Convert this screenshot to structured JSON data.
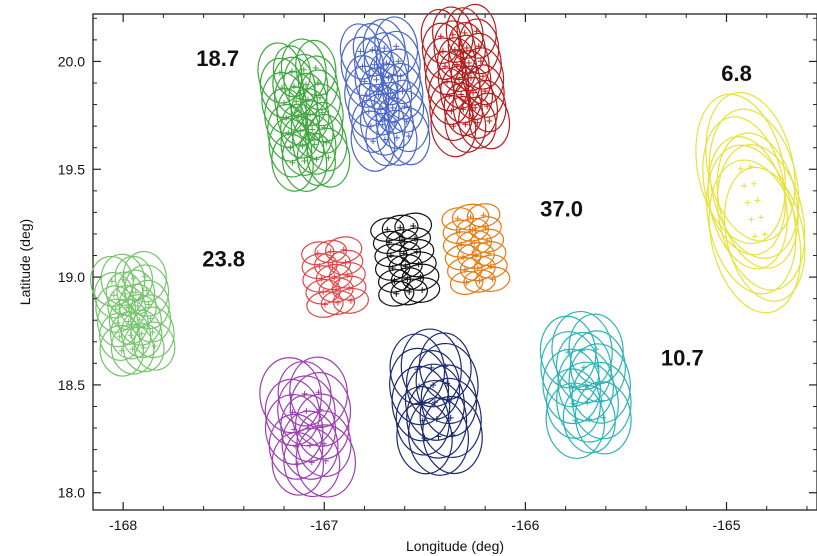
{
  "chart_data": {
    "type": "scatter",
    "title": "",
    "xlabel": "Longitude (deg)",
    "ylabel": "Latitude (deg)",
    "xlim": [
      -168.15,
      -164.55
    ],
    "ylim": [
      17.92,
      20.22
    ],
    "x_ticks": [
      {
        "value": -168,
        "label": "-168"
      },
      {
        "value": -167,
        "label": "-167"
      },
      {
        "value": -166,
        "label": "-166"
      },
      {
        "value": -165,
        "label": "-165"
      }
    ],
    "y_ticks": [
      {
        "value": 18.0,
        "label": "18.0"
      },
      {
        "value": 18.5,
        "label": "18.5"
      },
      {
        "value": 19.0,
        "label": "19.0"
      },
      {
        "value": 19.5,
        "label": "19.5"
      },
      {
        "value": 20.0,
        "label": "20.0"
      }
    ],
    "grid": false,
    "legend": "none",
    "groups": [
      {
        "id": "green",
        "color": "#3fa63f",
        "label": "18.7",
        "center": [
          -167.1,
          19.75
        ],
        "cols": 4,
        "rows": 7,
        "rx": 0.1,
        "ry": 0.13,
        "dx": 0.06,
        "dy": 0.07,
        "rot": -8
      },
      {
        "id": "blue",
        "color": "#4a66c8",
        "label": "",
        "center": [
          -166.7,
          19.85
        ],
        "cols": 4,
        "rows": 7,
        "rx": 0.1,
        "ry": 0.13,
        "dx": 0.06,
        "dy": 0.07,
        "rot": -8
      },
      {
        "id": "darkred",
        "color": "#b31d1d",
        "label": "",
        "center": [
          -166.3,
          19.92
        ],
        "cols": 4,
        "rows": 7,
        "rx": 0.1,
        "ry": 0.13,
        "dx": 0.06,
        "dy": 0.07,
        "rot": -8
      },
      {
        "id": "lightgreen",
        "color": "#77c46d",
        "label": "23.8",
        "center": [
          -167.95,
          18.83
        ],
        "cols": 4,
        "rows": 6,
        "rx": 0.1,
        "ry": 0.11,
        "dx": 0.055,
        "dy": 0.065,
        "rot": -8
      },
      {
        "id": "red",
        "color": "#e04848",
        "label": "",
        "center": [
          -166.95,
          19.0
        ],
        "cols": 3,
        "rows": 5,
        "rx": 0.085,
        "ry": 0.055,
        "dx": 0.065,
        "dy": 0.06,
        "rot": -8
      },
      {
        "id": "black",
        "color": "#111111",
        "label": "",
        "center": [
          -166.6,
          19.08
        ],
        "cols": 3,
        "rows": 6,
        "rx": 0.085,
        "ry": 0.055,
        "dx": 0.065,
        "dy": 0.06,
        "rot": -8
      },
      {
        "id": "orange",
        "color": "#e57b12",
        "label": "37.0",
        "center": [
          -166.25,
          19.13
        ],
        "cols": 3,
        "rows": 6,
        "rx": 0.085,
        "ry": 0.055,
        "dx": 0.065,
        "dy": 0.06,
        "rot": -8
      },
      {
        "id": "yellow",
        "color": "#e6e23a",
        "label": "6.8",
        "center": [
          -164.87,
          19.35
        ],
        "cols": 2,
        "rows": 5,
        "rx": 0.2,
        "ry": 0.33,
        "dx": 0.05,
        "dy": 0.08,
        "rot": -12
      },
      {
        "id": "purple",
        "color": "#9b3fb1",
        "label": "",
        "center": [
          -167.08,
          18.3
        ],
        "cols": 3,
        "rows": 5,
        "rx": 0.14,
        "ry": 0.16,
        "dx": 0.07,
        "dy": 0.08,
        "rot": -6
      },
      {
        "id": "navy",
        "color": "#1d2a6e",
        "label": "",
        "center": [
          -166.45,
          18.42
        ],
        "cols": 3,
        "rows": 5,
        "rx": 0.14,
        "ry": 0.17,
        "dx": 0.07,
        "dy": 0.08,
        "rot": -6
      },
      {
        "id": "teal",
        "color": "#2cb3b6",
        "label": "10.7",
        "center": [
          -165.7,
          18.5
        ],
        "cols": 3,
        "rows": 5,
        "rx": 0.14,
        "ry": 0.17,
        "dx": 0.07,
        "dy": 0.08,
        "rot": -6
      }
    ],
    "label_offsets": {
      "green": [
        -167.53,
        19.98
      ],
      "lightgreen": [
        -167.5,
        19.05
      ],
      "orange": [
        -165.82,
        19.28
      ],
      "yellow": [
        -164.95,
        19.91
      ],
      "teal": [
        -165.22,
        18.59
      ]
    }
  }
}
